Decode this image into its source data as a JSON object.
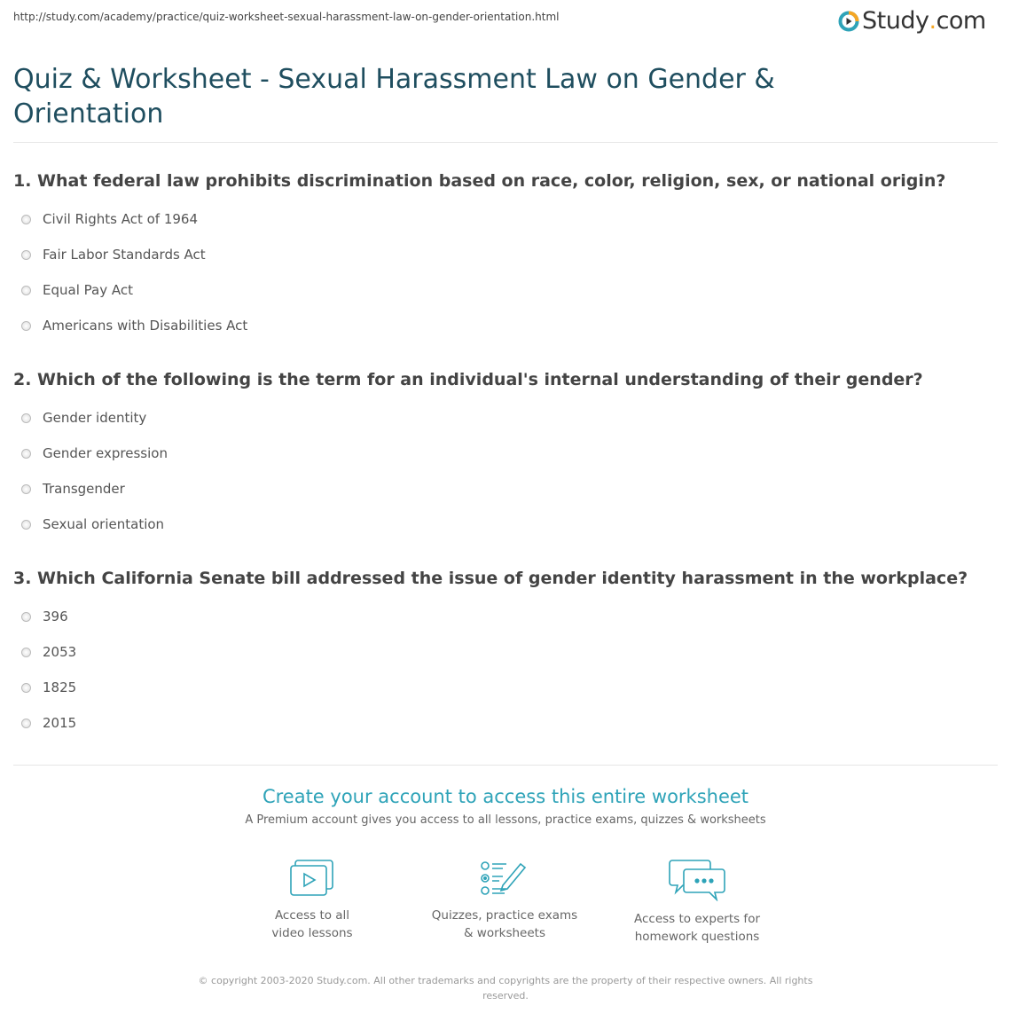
{
  "url": "http://study.com/academy/practice/quiz-worksheet-sexual-harassment-law-on-gender-orientation.html",
  "logo": {
    "text": "Study",
    "dot": ".",
    "suffix": "com"
  },
  "title": "Quiz & Worksheet - Sexual Harassment Law on Gender & Orientation",
  "questions": [
    {
      "text": "1. What federal law prohibits discrimination based on race, color, religion, sex, or national origin?",
      "options": [
        "Civil Rights Act of 1964",
        "Fair Labor Standards Act",
        "Equal Pay Act",
        "Americans with Disabilities Act"
      ]
    },
    {
      "text": "2. Which of the following is the term for an individual's internal understanding of their gender?",
      "options": [
        "Gender identity",
        "Gender expression",
        "Transgender",
        "Sexual orientation"
      ]
    },
    {
      "text": "3. Which California Senate bill addressed the issue of gender identity harassment in the workplace?",
      "options": [
        "396",
        "2053",
        "1825",
        "2015"
      ]
    }
  ],
  "cta": {
    "title": "Create your account to access this entire worksheet",
    "subtitle": "A Premium account gives you access to all lessons, practice exams, quizzes & worksheets"
  },
  "features": [
    {
      "icon": "video-lessons-icon",
      "line1": "Access to all",
      "line2": "video lessons"
    },
    {
      "icon": "quiz-worksheet-icon",
      "line1": "Quizzes, practice exams",
      "line2": "& worksheets"
    },
    {
      "icon": "chat-experts-icon",
      "line1": "Access to experts for",
      "line2": "homework questions"
    }
  ],
  "copyright": "© copyright 2003-2020 Study.com. All other trademarks and copyrights are the property of their respective owners. All rights reserved.",
  "colors": {
    "title": "#1f4e5f",
    "accent": "#2ea3b8",
    "logo_orange": "#f5a623"
  }
}
